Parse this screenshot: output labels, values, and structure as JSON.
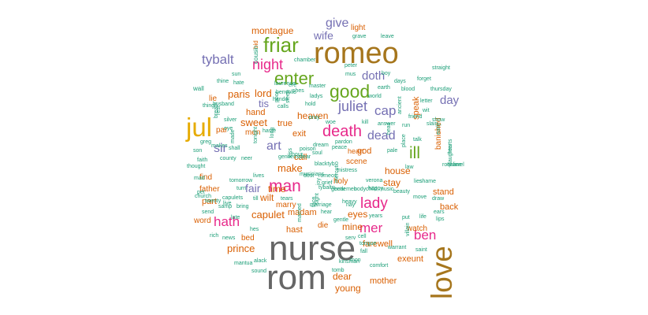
{
  "palette": {
    "gray": "#666666",
    "brown": "#A6761D",
    "gold": "#E6AB02",
    "green": "#66A61E",
    "pink": "#E7298A",
    "purple": "#7570B3",
    "orange": "#D95F02",
    "teal": "#1B9E77"
  },
  "words": [
    {
      "text": "nurse",
      "tier": "gray"
    },
    {
      "text": "rom",
      "tier": "gray"
    },
    {
      "text": "romeo",
      "tier": "brown"
    },
    {
      "text": "love",
      "tier": "brown"
    },
    {
      "text": "jul",
      "tier": "gold"
    },
    {
      "text": "friar",
      "tier": "green"
    },
    {
      "text": "enter",
      "tier": "green"
    },
    {
      "text": "good",
      "tier": "green"
    },
    {
      "text": "ill",
      "tier": "green"
    },
    {
      "text": "night",
      "tier": "pink"
    },
    {
      "text": "death",
      "tier": "pink"
    },
    {
      "text": "man",
      "tier": "pink"
    },
    {
      "text": "hath",
      "tier": "pink"
    },
    {
      "text": "lady",
      "tier": "pink"
    },
    {
      "text": "mer",
      "tier": "pink"
    },
    {
      "text": "ben",
      "tier": "pink"
    },
    {
      "text": "tybalt",
      "tier": "purple"
    },
    {
      "text": "give",
      "tier": "purple"
    },
    {
      "text": "wife",
      "tier": "purple"
    },
    {
      "text": "juliet",
      "tier": "purple"
    },
    {
      "text": "doth",
      "tier": "purple"
    },
    {
      "text": "cap",
      "tier": "purple"
    },
    {
      "text": "day",
      "tier": "purple"
    },
    {
      "text": "sir",
      "tier": "purple"
    },
    {
      "text": "art",
      "tier": "purple"
    },
    {
      "text": "dead",
      "tier": "purple"
    },
    {
      "text": "fair",
      "tier": "purple"
    },
    {
      "text": "tis",
      "tier": "purple"
    },
    {
      "text": "montague",
      "tier": "orange"
    },
    {
      "text": "light",
      "tier": "orange"
    },
    {
      "text": "lord",
      "tier": "orange"
    },
    {
      "text": "paris",
      "tier": "orange"
    },
    {
      "text": "sweet",
      "tier": "orange"
    },
    {
      "text": "hand",
      "tier": "orange"
    },
    {
      "text": "heaven",
      "tier": "orange"
    },
    {
      "text": "true",
      "tier": "orange"
    },
    {
      "text": "exit",
      "tier": "orange"
    },
    {
      "text": "speak",
      "tier": "orange"
    },
    {
      "text": "banished",
      "tier": "orange"
    },
    {
      "text": "make",
      "tier": "orange"
    },
    {
      "text": "call",
      "tier": "orange"
    },
    {
      "text": "scene",
      "tier": "orange"
    },
    {
      "text": "house",
      "tier": "orange"
    },
    {
      "text": "stay",
      "tier": "orange"
    },
    {
      "text": "time",
      "tier": "orange"
    },
    {
      "text": "wilt",
      "tier": "orange"
    },
    {
      "text": "capulet",
      "tier": "orange"
    },
    {
      "text": "madam",
      "tier": "orange"
    },
    {
      "text": "hast",
      "tier": "orange"
    },
    {
      "text": "eyes",
      "tier": "orange"
    },
    {
      "text": "mine",
      "tier": "orange"
    },
    {
      "text": "back",
      "tier": "orange"
    },
    {
      "text": "stand",
      "tier": "orange"
    },
    {
      "text": "prince",
      "tier": "orange"
    },
    {
      "text": "farewell",
      "tier": "orange"
    },
    {
      "text": "exeunt",
      "tier": "orange"
    },
    {
      "text": "dear",
      "tier": "orange"
    },
    {
      "text": "young",
      "tier": "orange"
    },
    {
      "text": "mother",
      "tier": "orange"
    },
    {
      "text": "find",
      "tier": "orange"
    },
    {
      "text": "father",
      "tier": "orange"
    },
    {
      "text": "part",
      "tier": "orange"
    },
    {
      "text": "word",
      "tier": "orange"
    },
    {
      "text": "bed",
      "tier": "orange"
    },
    {
      "text": "watch",
      "tier": "orange"
    },
    {
      "text": "die",
      "tier": "orange"
    },
    {
      "text": "marry",
      "tier": "orange"
    },
    {
      "text": "holy",
      "tier": "orange"
    },
    {
      "text": "god",
      "tier": "orange"
    },
    {
      "text": "heart",
      "tier": "orange"
    },
    {
      "text": "lie",
      "tier": "orange"
    },
    {
      "text": "par",
      "tier": "orange"
    },
    {
      "text": "men",
      "tier": "orange"
    },
    {
      "text": "bid",
      "tier": "orange"
    },
    {
      "text": "cousin",
      "tier": "teal"
    },
    {
      "text": "grave",
      "tier": "teal"
    },
    {
      "text": "leave",
      "tier": "teal"
    },
    {
      "text": "straight",
      "tier": "teal"
    },
    {
      "text": "chamber",
      "tier": "teal"
    },
    {
      "text": "peter",
      "tier": "teal"
    },
    {
      "text": "mus",
      "tier": "teal"
    },
    {
      "text": "boy",
      "tier": "teal"
    },
    {
      "text": "forget",
      "tier": "teal"
    },
    {
      "text": "sun",
      "tier": "teal"
    },
    {
      "text": "thine",
      "tier": "teal"
    },
    {
      "text": "hate",
      "tier": "teal"
    },
    {
      "text": "laurence",
      "tier": "teal"
    },
    {
      "text": "ere",
      "tier": "teal"
    },
    {
      "text": "master",
      "tier": "teal"
    },
    {
      "text": "earth",
      "tier": "teal"
    },
    {
      "text": "days",
      "tier": "teal"
    },
    {
      "text": "blood",
      "tier": "teal"
    },
    {
      "text": "thursday",
      "tier": "teal"
    },
    {
      "text": "wall",
      "tier": "teal"
    },
    {
      "text": "benvolio",
      "tier": "teal"
    },
    {
      "text": "shes",
      "tier": "teal"
    },
    {
      "text": "ladys",
      "tier": "teal"
    },
    {
      "text": "world",
      "tier": "teal"
    },
    {
      "text": "ancient",
      "tier": "teal"
    },
    {
      "text": "letter",
      "tier": "teal"
    },
    {
      "text": "thing",
      "tier": "teal"
    },
    {
      "text": "husband",
      "tier": "teal"
    },
    {
      "text": "hands",
      "tier": "teal"
    },
    {
      "text": "calls",
      "tier": "teal"
    },
    {
      "text": "wit",
      "tier": "teal"
    },
    {
      "text": "show",
      "tier": "teal"
    },
    {
      "text": "slain",
      "tier": "teal"
    },
    {
      "text": "early",
      "tier": "teal"
    },
    {
      "text": "breath",
      "tier": "teal"
    },
    {
      "text": "makes",
      "tier": "teal"
    },
    {
      "text": "rest",
      "tier": "teal"
    },
    {
      "text": "silver",
      "tier": "teal"
    },
    {
      "text": "eye",
      "tier": "teal"
    },
    {
      "text": "long",
      "tier": "teal"
    },
    {
      "text": "woe",
      "tier": "teal"
    },
    {
      "text": "kill",
      "tier": "teal"
    },
    {
      "text": "answer",
      "tier": "teal"
    },
    {
      "text": "run",
      "tier": "teal"
    },
    {
      "text": "friend",
      "tier": "teal"
    },
    {
      "text": "greg",
      "tier": "teal"
    },
    {
      "text": "son",
      "tier": "teal"
    },
    {
      "text": "haste",
      "tier": "teal"
    },
    {
      "text": "poison",
      "tier": "teal"
    },
    {
      "text": "kiss",
      "tier": "teal"
    },
    {
      "text": "dream",
      "tier": "teal"
    },
    {
      "text": "blacktyb",
      "tier": "teal"
    },
    {
      "text": "pardon",
      "tier": "teal"
    },
    {
      "text": "talk",
      "tier": "teal"
    },
    {
      "text": "hearts",
      "tier": "teal"
    },
    {
      "text": "faith",
      "tier": "teal"
    },
    {
      "text": "county",
      "tier": "teal"
    },
    {
      "text": "neer",
      "tier": "teal"
    },
    {
      "text": "gentleman",
      "tier": "teal"
    },
    {
      "text": "fear",
      "tier": "teal"
    },
    {
      "text": "musicians",
      "tier": "teal"
    },
    {
      "text": "romeos",
      "tier": "teal"
    },
    {
      "text": "grief",
      "tier": "teal"
    },
    {
      "text": "mistress",
      "tier": "teal"
    },
    {
      "text": "verona",
      "tier": "teal"
    },
    {
      "text": "law",
      "tier": "teal"
    },
    {
      "text": "daughter",
      "tier": "teal"
    },
    {
      "text": "rosaline",
      "tier": "teal"
    },
    {
      "text": "quarrel",
      "tier": "teal"
    },
    {
      "text": "thought",
      "tier": "teal"
    },
    {
      "text": "mad",
      "tier": "teal"
    },
    {
      "text": "pet",
      "tier": "teal"
    },
    {
      "text": "tomorrow",
      "tier": "teal"
    },
    {
      "text": "live",
      "tier": "teal"
    },
    {
      "text": "turn",
      "tier": "teal"
    },
    {
      "text": "lives",
      "tier": "teal"
    },
    {
      "text": "dost",
      "tier": "teal"
    },
    {
      "text": "joy",
      "tier": "teal"
    },
    {
      "text": "bear",
      "tier": "teal"
    },
    {
      "text": "body",
      "tier": "teal"
    },
    {
      "text": "child",
      "tier": "teal"
    },
    {
      "text": "music",
      "tier": "teal"
    },
    {
      "text": "beauty",
      "tier": "teal"
    },
    {
      "text": "lies",
      "tier": "teal"
    },
    {
      "text": "shame",
      "tier": "teal"
    },
    {
      "text": "church",
      "tier": "teal"
    },
    {
      "text": "twenty",
      "tier": "teal"
    },
    {
      "text": "capulets",
      "tier": "teal"
    },
    {
      "text": "till",
      "tier": "teal"
    },
    {
      "text": "tears",
      "tier": "teal"
    },
    {
      "text": "tybalts",
      "tier": "teal"
    },
    {
      "text": "gentlemen",
      "tier": "teal"
    },
    {
      "text": "move",
      "tier": "teal"
    },
    {
      "text": "draw",
      "tier": "teal"
    },
    {
      "text": "send",
      "tier": "teal"
    },
    {
      "text": "samp",
      "tier": "teal"
    },
    {
      "text": "bring",
      "tier": "teal"
    },
    {
      "text": "marriage",
      "tier": "teal"
    },
    {
      "text": "sight",
      "tier": "teal"
    },
    {
      "text": "heavy",
      "tier": "teal"
    },
    {
      "text": "nay",
      "tier": "teal"
    },
    {
      "text": "ears",
      "tier": "teal"
    },
    {
      "text": "late",
      "tier": "teal"
    },
    {
      "text": "hes",
      "tier": "teal"
    },
    {
      "text": "hear",
      "tier": "teal"
    },
    {
      "text": "gentle",
      "tier": "teal"
    },
    {
      "text": "serv",
      "tier": "teal"
    },
    {
      "text": "years",
      "tier": "teal"
    },
    {
      "text": "put",
      "tier": "teal"
    },
    {
      "text": "life",
      "tier": "teal"
    },
    {
      "text": "lips",
      "tier": "teal"
    },
    {
      "text": "rich",
      "tier": "teal"
    },
    {
      "text": "news",
      "tier": "teal"
    },
    {
      "text": "cell",
      "tier": "teal"
    },
    {
      "text": "tongue",
      "tier": "teal"
    },
    {
      "text": "villain",
      "tier": "teal"
    },
    {
      "text": "saint",
      "tier": "teal"
    },
    {
      "text": "fall",
      "tier": "teal"
    },
    {
      "text": "warrant",
      "tier": "teal"
    },
    {
      "text": "mantua",
      "tier": "teal"
    },
    {
      "text": "alack",
      "tier": "teal"
    },
    {
      "text": "kinsman",
      "tier": "teal"
    },
    {
      "text": "mon",
      "tier": "teal"
    },
    {
      "text": "comfort",
      "tier": "teal"
    },
    {
      "text": "tomb",
      "tier": "teal"
    },
    {
      "text": "sound",
      "tier": "teal"
    },
    {
      "text": "soul",
      "tier": "teal"
    },
    {
      "text": "peace",
      "tier": "teal"
    },
    {
      "text": "hour",
      "tier": "teal"
    },
    {
      "text": "happy",
      "tier": "teal"
    },
    {
      "text": "pale",
      "tier": "teal"
    },
    {
      "text": "place",
      "tier": "teal"
    },
    {
      "text": "head",
      "tier": "teal"
    },
    {
      "text": "made",
      "tier": "teal"
    },
    {
      "text": "tonight",
      "tier": "teal"
    },
    {
      "text": "poor",
      "tier": "teal"
    },
    {
      "text": "sleep",
      "tier": "teal"
    },
    {
      "text": "shall",
      "tier": "teal"
    },
    {
      "text": "face",
      "tier": "teal"
    },
    {
      "text": "mercutio",
      "tier": "teal"
    },
    {
      "text": "married",
      "tier": "teal"
    },
    {
      "text": "pray",
      "tier": "teal"
    },
    {
      "text": "hold",
      "tier": "teal"
    }
  ]
}
